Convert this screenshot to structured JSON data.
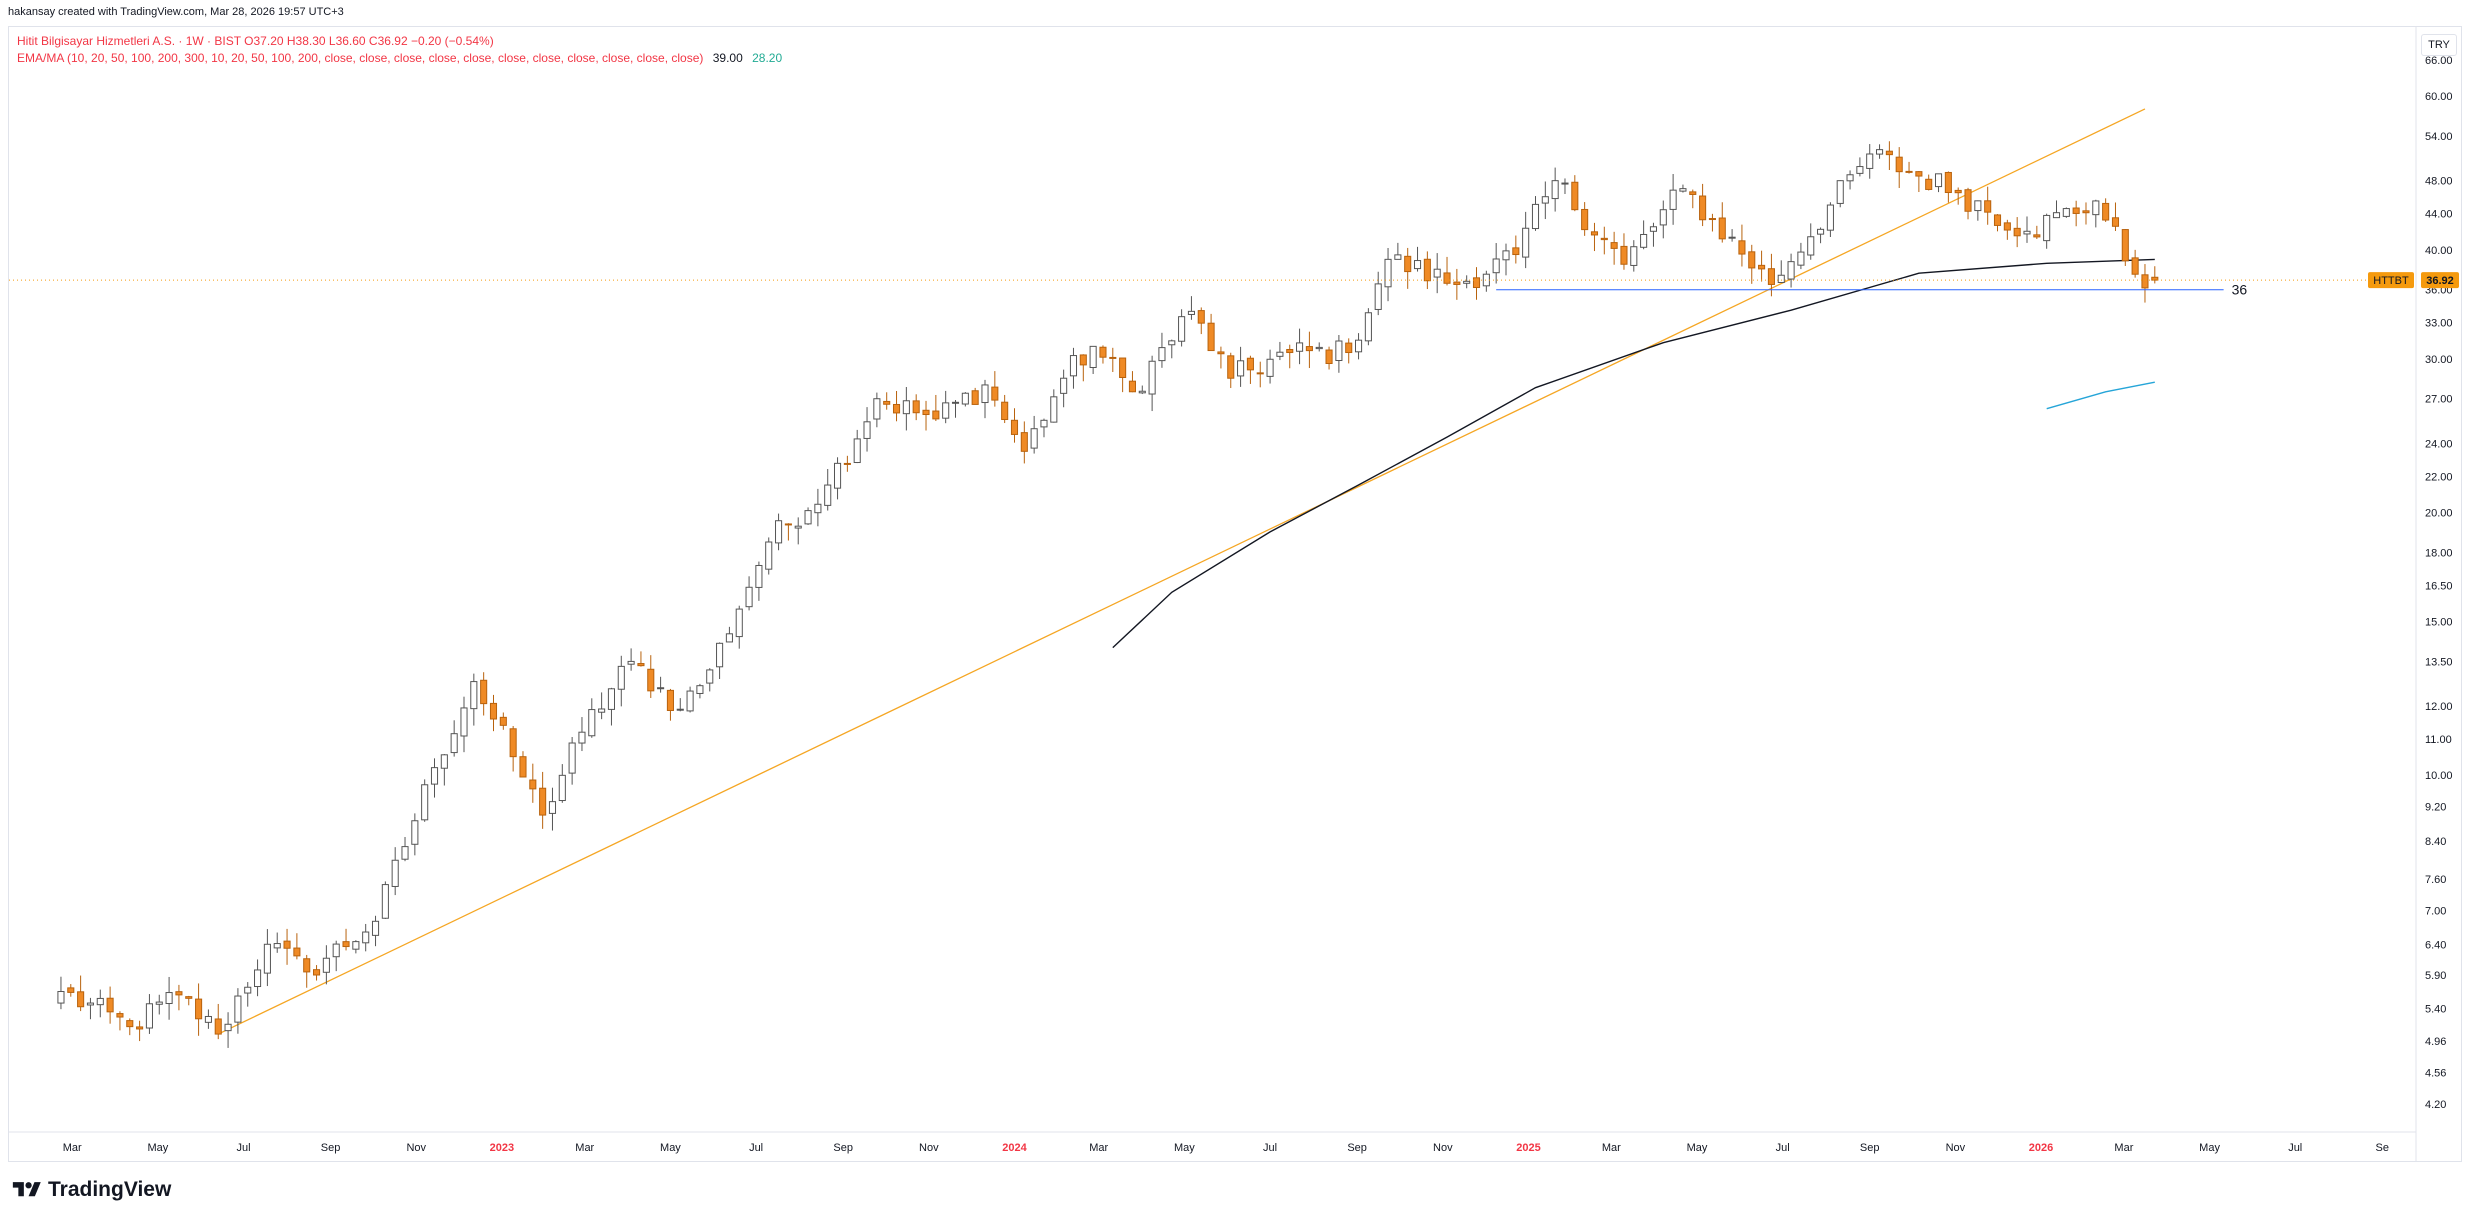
{
  "header": {
    "credit": "hakansay created with TradingView.com, Mar 28, 2026 19:57 UTC+3",
    "instrument": "Hitit Bilgisayar Hizmetleri A.S. · 1W · BIST",
    "ohlc": "O37.20  H38.30  L36.60  C36.92  −0.20 (−0.54%)",
    "indicator": "EMA/MA (10, 20, 50, 100, 200, 300, 10, 20, 50, 100, 200, close, close, close, close, close, close, close, close, close, close, close)",
    "indicator_value_1": "39.00",
    "indicator_value_2": "28.20",
    "currency": "TRY"
  },
  "brand": {
    "name": "TradingView"
  },
  "colors": {
    "up_fill": "#ffffff",
    "up_border": "#555555",
    "down_fill": "#ef8a25",
    "down_border": "#b8620d",
    "trendline": "#f5a623",
    "support": "#2962ff",
    "ema": "#131722",
    "ema2": "#26a5d8",
    "price_tag": "#f59a0e"
  },
  "chart_data": {
    "type": "candlestick",
    "symbol": "HTTBT",
    "last_price": "36.92",
    "y_scale": "log",
    "ylim": [
      3.9,
      72
    ],
    "y_ticks": [
      "4.20",
      "4.56",
      "4.96",
      "5.40",
      "5.90",
      "6.40",
      "7.00",
      "7.60",
      "8.40",
      "9.20",
      "10.00",
      "11.00",
      "12.00",
      "13.50",
      "15.00",
      "16.50",
      "18.00",
      "20.00",
      "22.00",
      "24.00",
      "27.00",
      "30.00",
      "33.00",
      "36.00",
      "40.00",
      "44.00",
      "48.00",
      "54.00",
      "60.00",
      "66.00"
    ],
    "x_ticks": [
      {
        "label": "Mar",
        "date": "2022-03-01"
      },
      {
        "label": "May",
        "date": "2022-05-01"
      },
      {
        "label": "Jul",
        "date": "2022-07-01"
      },
      {
        "label": "Sep",
        "date": "2022-09-01"
      },
      {
        "label": "Nov",
        "date": "2022-11-01"
      },
      {
        "label": "2023",
        "date": "2023-01-01",
        "year": true
      },
      {
        "label": "Mar",
        "date": "2023-03-01"
      },
      {
        "label": "May",
        "date": "2023-05-01"
      },
      {
        "label": "Jul",
        "date": "2023-07-01"
      },
      {
        "label": "Sep",
        "date": "2023-09-01"
      },
      {
        "label": "Nov",
        "date": "2023-11-01"
      },
      {
        "label": "2024",
        "date": "2024-01-01",
        "year": true
      },
      {
        "label": "Mar",
        "date": "2024-03-01"
      },
      {
        "label": "May",
        "date": "2024-05-01"
      },
      {
        "label": "Jul",
        "date": "2024-07-01"
      },
      {
        "label": "Sep",
        "date": "2024-09-01"
      },
      {
        "label": "Nov",
        "date": "2024-11-01"
      },
      {
        "label": "2025",
        "date": "2025-01-01",
        "year": true
      },
      {
        "label": "Mar",
        "date": "2025-03-01"
      },
      {
        "label": "May",
        "date": "2025-05-01"
      },
      {
        "label": "Jul",
        "date": "2025-07-01"
      },
      {
        "label": "Sep",
        "date": "2025-09-01"
      },
      {
        "label": "Nov",
        "date": "2025-11-01"
      },
      {
        "label": "2026",
        "date": "2026-01-01",
        "year": true
      },
      {
        "label": "Mar",
        "date": "2026-03-01"
      },
      {
        "label": "May",
        "date": "2026-05-01"
      },
      {
        "label": "Jul",
        "date": "2026-07-01"
      },
      {
        "label": "Se",
        "date": "2026-09-01"
      }
    ],
    "series": [
      {
        "kind": "candles",
        "interval": "1W",
        "first_date": "2022-02-21",
        "last_date": "2026-03-23",
        "anchors": [
          {
            "date": "2022-02-21",
            "close": 5.65
          },
          {
            "date": "2022-04-11",
            "close": 5.15
          },
          {
            "date": "2022-05-16",
            "close": 5.6
          },
          {
            "date": "2022-06-13",
            "close": 5.05
          },
          {
            "date": "2022-07-18",
            "close": 6.4
          },
          {
            "date": "2022-08-15",
            "close": 5.95
          },
          {
            "date": "2022-10-03",
            "close": 6.8
          },
          {
            "date": "2022-11-14",
            "close": 10.2
          },
          {
            "date": "2022-12-12",
            "close": 12.8
          },
          {
            "date": "2023-01-09",
            "close": 10.5
          },
          {
            "date": "2023-01-30",
            "close": 9.0
          },
          {
            "date": "2023-02-27",
            "close": 11.2
          },
          {
            "date": "2023-04-03",
            "close": 13.5
          },
          {
            "date": "2023-05-08",
            "close": 11.9
          },
          {
            "date": "2023-05-29",
            "close": 13.2
          },
          {
            "date": "2023-07-10",
            "close": 18.5
          },
          {
            "date": "2023-08-21",
            "close": 21.5
          },
          {
            "date": "2023-09-25",
            "close": 27.0
          },
          {
            "date": "2023-11-06",
            "close": 25.6
          },
          {
            "date": "2023-12-11",
            "close": 28.0
          },
          {
            "date": "2024-01-08",
            "close": 23.5
          },
          {
            "date": "2024-02-05",
            "close": 28.5
          },
          {
            "date": "2024-02-26",
            "close": 31.0
          },
          {
            "date": "2024-03-25",
            "close": 27.5
          },
          {
            "date": "2024-05-06",
            "close": 34.0
          },
          {
            "date": "2024-06-03",
            "close": 28.5
          },
          {
            "date": "2024-07-15",
            "close": 30.5
          },
          {
            "date": "2024-08-26",
            "close": 30.5
          },
          {
            "date": "2024-09-23",
            "close": 39.0
          },
          {
            "date": "2024-11-11",
            "close": 36.5
          },
          {
            "date": "2024-12-23",
            "close": 39.5
          },
          {
            "date": "2025-01-20",
            "close": 48.0
          },
          {
            "date": "2025-03-10",
            "close": 38.5
          },
          {
            "date": "2025-04-21",
            "close": 47.0
          },
          {
            "date": "2025-06-23",
            "close": 36.5
          },
          {
            "date": "2025-09-01",
            "close": 51.5
          },
          {
            "date": "2025-11-03",
            "close": 46.5
          },
          {
            "date": "2025-12-22",
            "close": 42.0
          },
          {
            "date": "2026-02-09",
            "close": 45.5
          },
          {
            "date": "2026-03-09",
            "close": 37.5
          },
          {
            "date": "2026-03-23",
            "open": 37.2,
            "high": 38.3,
            "low": 36.6,
            "close": 36.92
          }
        ]
      },
      {
        "kind": "ema",
        "points": [
          {
            "date": "2024-03-11",
            "value": 14.0
          },
          {
            "date": "2024-04-22",
            "value": 16.2
          },
          {
            "date": "2024-07-01",
            "value": 19.0
          },
          {
            "date": "2024-09-02",
            "value": 21.5
          },
          {
            "date": "2024-11-04",
            "value": 24.4
          },
          {
            "date": "2025-01-06",
            "value": 27.8
          },
          {
            "date": "2025-04-07",
            "value": 31.3
          },
          {
            "date": "2025-07-07",
            "value": 34.1
          },
          {
            "date": "2025-10-06",
            "value": 37.6
          },
          {
            "date": "2026-01-05",
            "value": 38.6
          },
          {
            "date": "2026-03-23",
            "value": 39.0
          }
        ]
      },
      {
        "kind": "ema",
        "points": [
          {
            "date": "2026-01-05",
            "value": 26.3
          },
          {
            "date": "2026-02-16",
            "value": 27.5
          },
          {
            "date": "2026-03-23",
            "value": 28.2
          }
        ]
      }
    ],
    "trendline": {
      "from": {
        "date": "2022-06-13",
        "value": 5.05
      },
      "to": {
        "date": "2026-03-16",
        "value": 58.0
      }
    },
    "support": {
      "value": 36.0,
      "from": "2024-12-09",
      "to": "2026-05-11",
      "label": "36"
    }
  }
}
